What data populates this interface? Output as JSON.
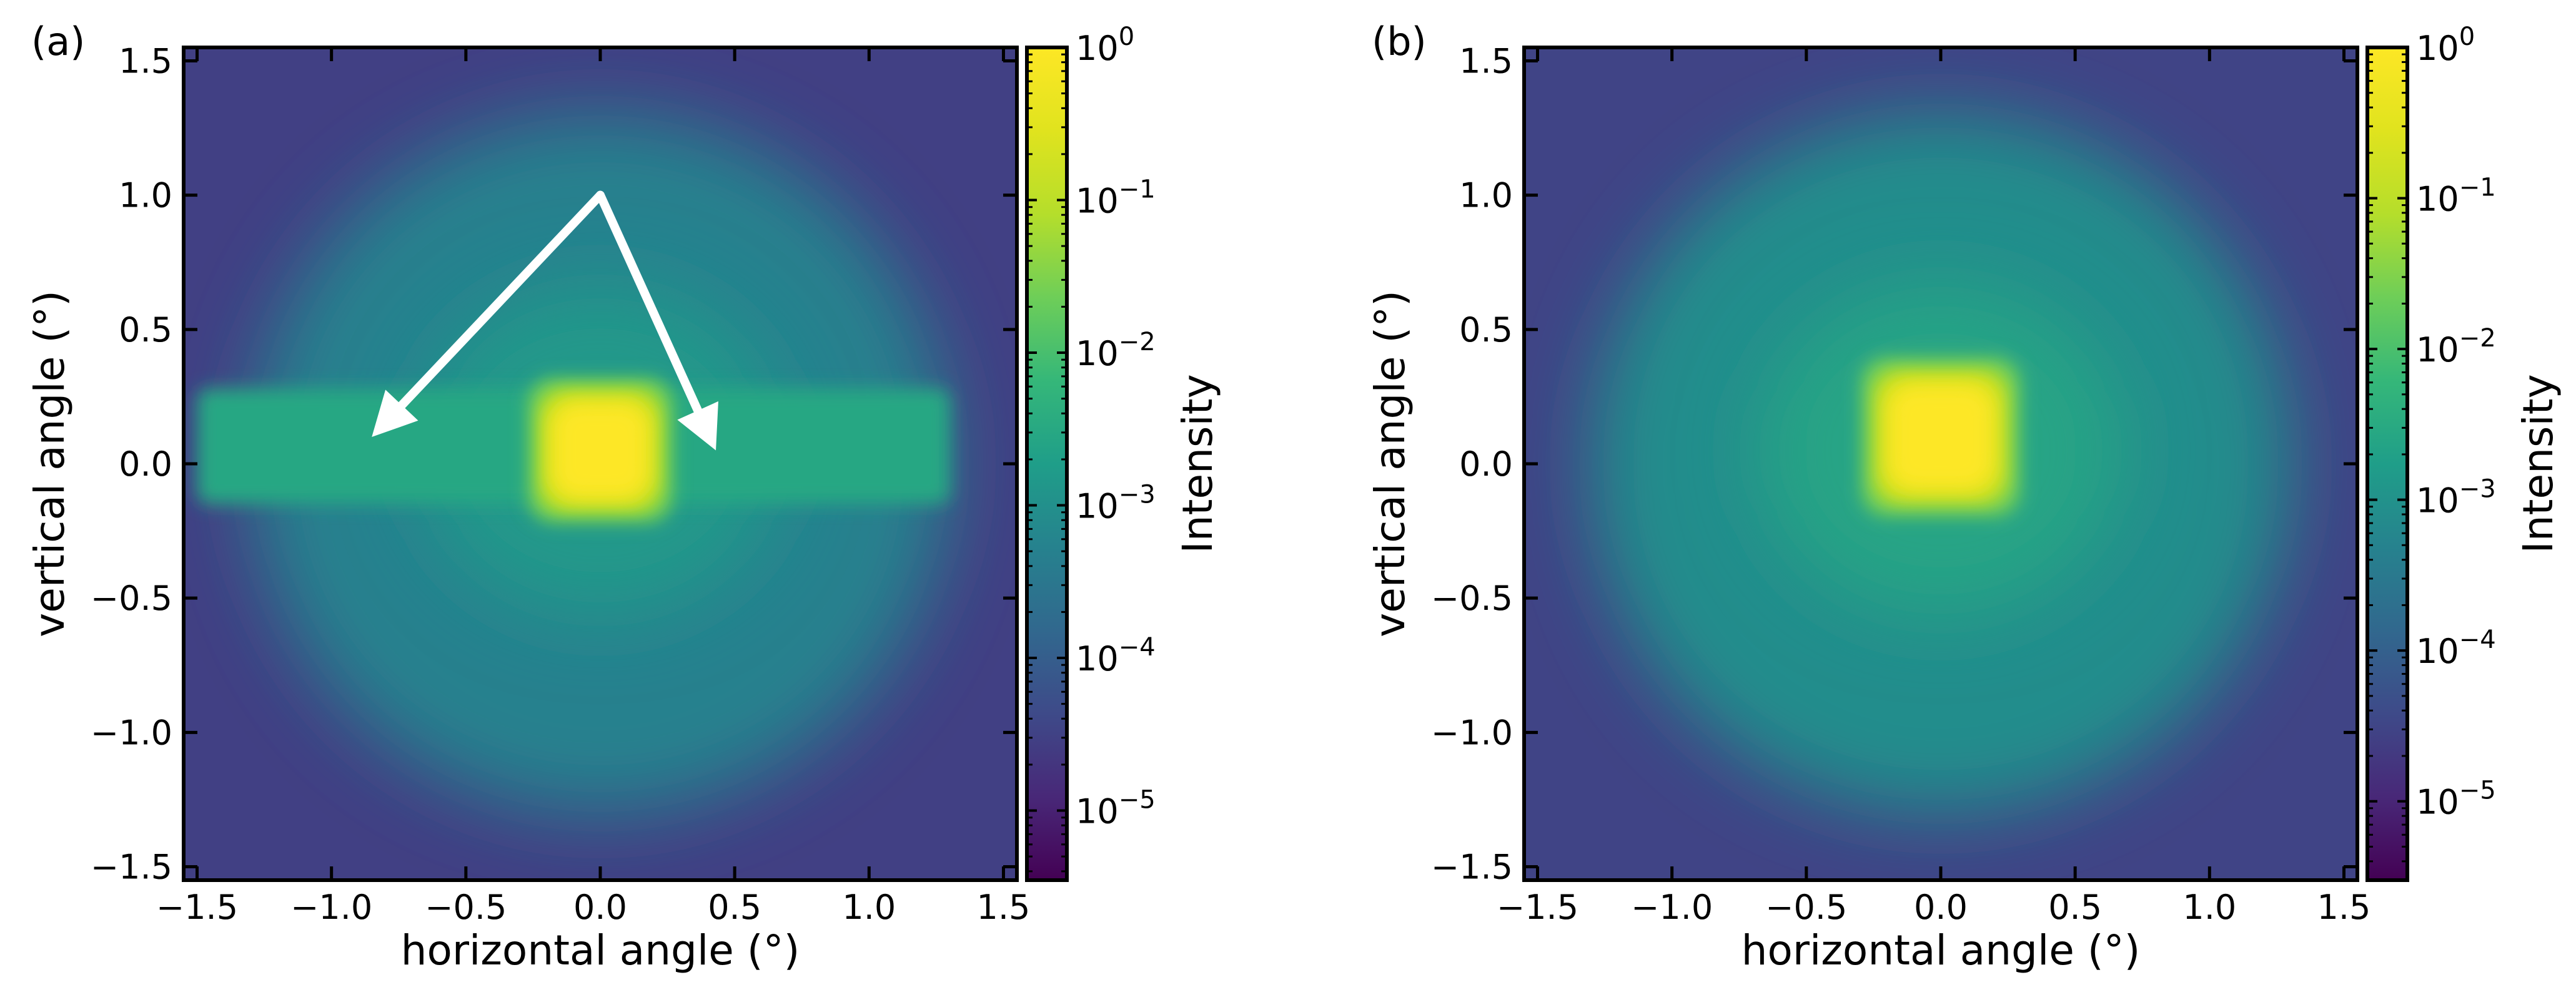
{
  "chart_data": [
    {
      "panel_label": "(a)",
      "type": "heatmap",
      "xlabel": "horizontal angle (°)",
      "ylabel": "vertical angle (°)",
      "xlim": [
        -1.55,
        1.55
      ],
      "ylim": [
        -1.55,
        1.55
      ],
      "xticks": [
        -1.5,
        -1.0,
        -0.5,
        0.0,
        0.5,
        1.0,
        1.5
      ],
      "xtick_labels": [
        "−1.5",
        "−1.0",
        "−0.5",
        "0.0",
        "0.5",
        "1.0",
        "1.5"
      ],
      "yticks": [
        1.5,
        1.0,
        0.5,
        0.0,
        -0.5,
        -1.0,
        -1.5
      ],
      "ytick_labels": [
        "1.5",
        "1.0",
        "0.5",
        "0.0",
        "−0.5",
        "−1.0",
        "−1.5"
      ],
      "colormap": "viridis",
      "colorbar": {
        "label": "Intensity",
        "scale": "log",
        "range": [
          3.5e-06,
          1
        ],
        "ticks": [
          1,
          0.1,
          0.01,
          0.001,
          0.0001,
          1e-05
        ],
        "tick_bases": [
          "10",
          "10",
          "10",
          "10",
          "10",
          "10"
        ],
        "tick_exponents": [
          "0",
          "−1",
          "−2",
          "−3",
          "−4",
          "−5"
        ]
      },
      "features": {
        "central_spot": {
          "x": 0.0,
          "y": 0.05,
          "half_width": 0.2,
          "half_height": 0.2,
          "peak_intensity": 1.0
        },
        "horizontal_band": {
          "x_range": [
            -1.5,
            1.3
          ],
          "y_range": [
            -0.15,
            0.28
          ],
          "intensity": 0.003
        },
        "halo_intensity": 0.0005,
        "edge_intensity": 3e-05
      },
      "annotations": [
        {
          "type": "arrow",
          "color": "#ffffff",
          "from": [
            0.0,
            1.0
          ],
          "to": [
            -0.85,
            0.1
          ]
        },
        {
          "type": "arrow",
          "color": "#ffffff",
          "from": [
            0.0,
            1.0
          ],
          "to": [
            0.43,
            0.05
          ]
        }
      ]
    },
    {
      "panel_label": "(b)",
      "type": "heatmap",
      "xlabel": "horizontal angle (°)",
      "ylabel": "vertical angle (°)",
      "xlim": [
        -1.55,
        1.55
      ],
      "ylim": [
        -1.55,
        1.55
      ],
      "xticks": [
        -1.5,
        -1.0,
        -0.5,
        0.0,
        0.5,
        1.0,
        1.5
      ],
      "xtick_labels": [
        "−1.5",
        "−1.0",
        "−0.5",
        "0.0",
        "0.5",
        "1.0",
        "1.5"
      ],
      "yticks": [
        1.5,
        1.0,
        0.5,
        0.0,
        -0.5,
        -1.0,
        -1.5
      ],
      "ytick_labels": [
        "1.5",
        "1.0",
        "0.5",
        "0.0",
        "−0.5",
        "−1.0",
        "−1.5"
      ],
      "colormap": "viridis",
      "colorbar": {
        "label": "Intensity",
        "scale": "log",
        "range": [
          3e-06,
          1
        ],
        "ticks": [
          1,
          0.1,
          0.01,
          0.001,
          0.0001,
          1e-05
        ],
        "tick_bases": [
          "10",
          "10",
          "10",
          "10",
          "10",
          "10"
        ],
        "tick_exponents": [
          "0",
          "−1",
          "−2",
          "−3",
          "−4",
          "−5"
        ]
      },
      "features": {
        "central_spot": {
          "x": 0.0,
          "y": 0.1,
          "half_width": 0.22,
          "half_height": 0.22,
          "peak_intensity": 1.0
        },
        "halo_intensity": 0.0008,
        "edge_intensity": 3e-05
      },
      "annotations": []
    }
  ]
}
